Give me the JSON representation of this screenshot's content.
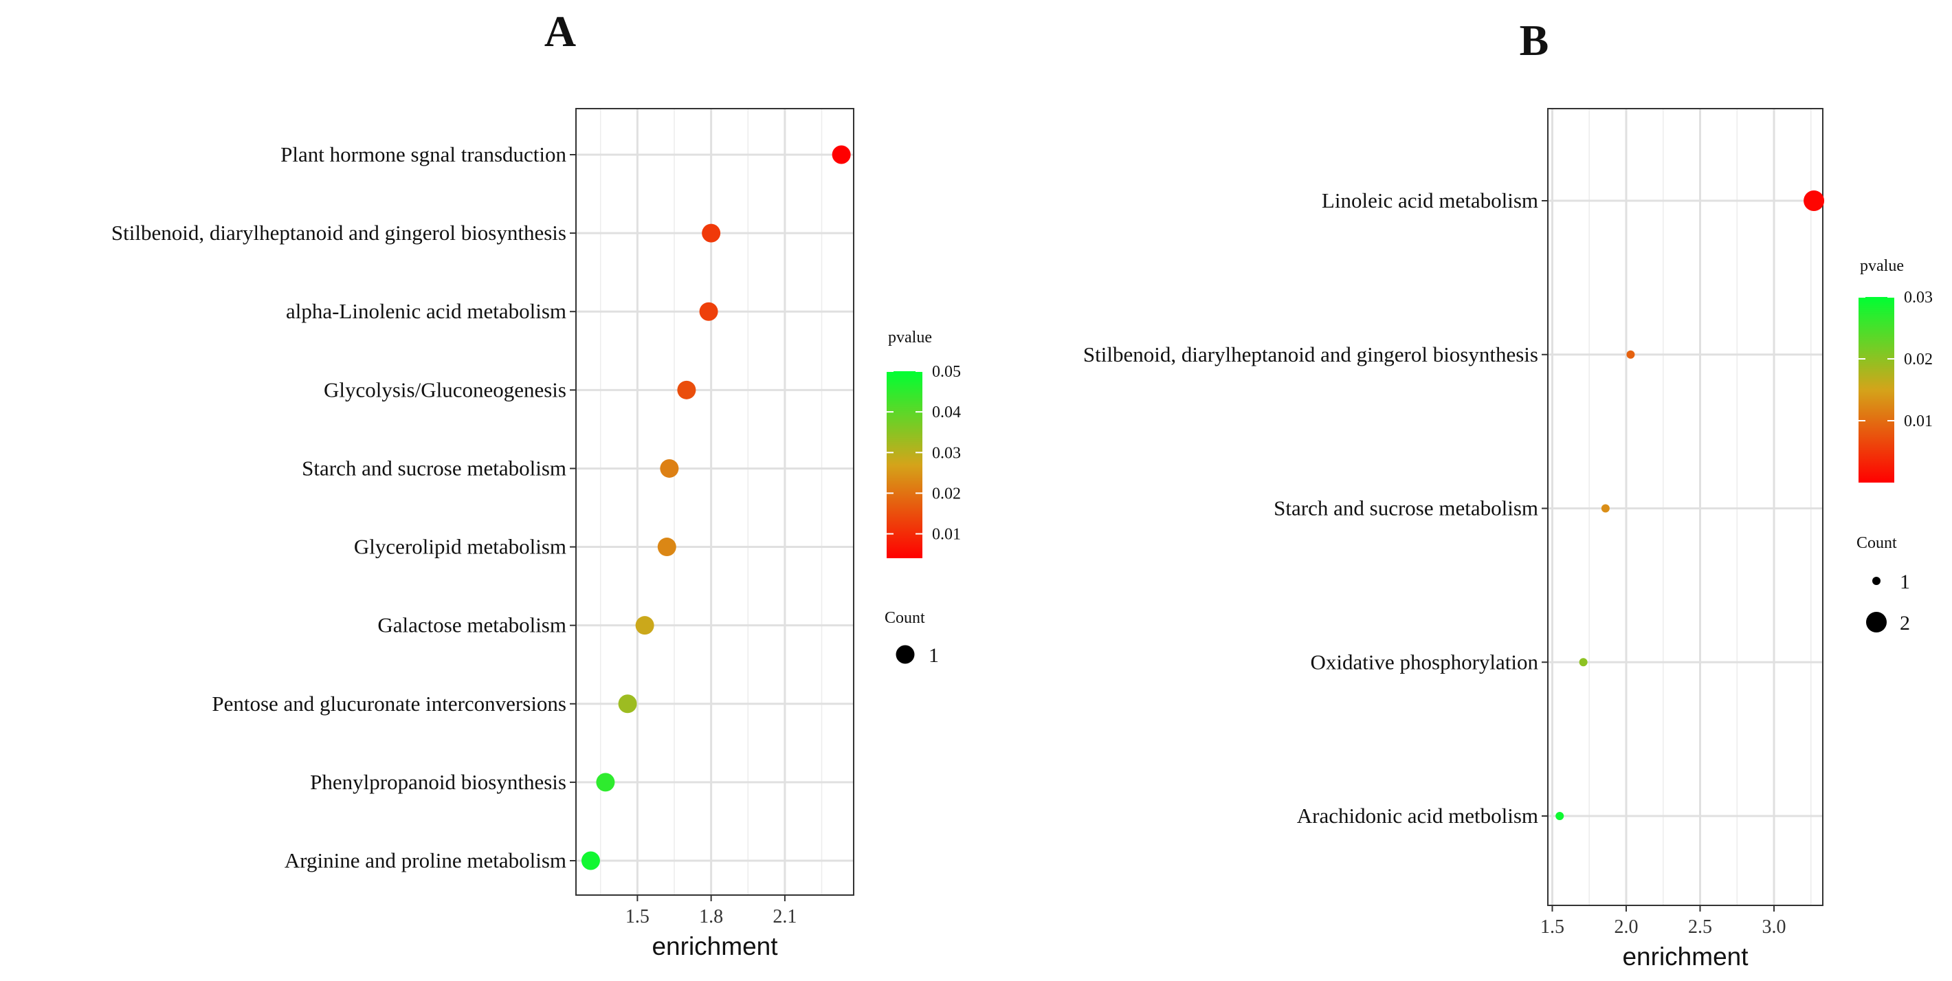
{
  "chart_data": [
    {
      "panel": "A",
      "type": "scatter",
      "xlabel": "enrichment",
      "xlim": [
        1.25,
        2.38
      ],
      "xticks": [
        1.5,
        1.8,
        2.1
      ],
      "xtick_labels": [
        "1.5",
        "1.8",
        "2.1"
      ],
      "categories": [
        "Plant hormone sgnal transduction",
        "Stilbenoid, diarylheptanoid and gingerol biosynthesis",
        "alpha-Linolenic acid metabolism",
        "Glycolysis/Gluconeogenesis",
        "Starch and sucrose metabolism",
        "Glycerolipid metabolism",
        "Galactose metabolism",
        "Pentose and glucuronate interconversions",
        "Phenylpropanoid biosynthesis",
        "Arginine and proline metabolism"
      ],
      "enrichment": [
        2.33,
        1.8,
        1.79,
        1.7,
        1.63,
        1.62,
        1.53,
        1.46,
        1.37,
        1.31
      ],
      "pvalue": [
        0.001,
        0.012,
        0.013,
        0.015,
        0.022,
        0.023,
        0.028,
        0.033,
        0.045,
        0.048
      ],
      "count": [
        1,
        1,
        1,
        1,
        1,
        1,
        1,
        1,
        1,
        1
      ],
      "colorbar": {
        "title": "pvalue",
        "range": [
          0.004,
          0.05
        ],
        "ticks": [
          0.01,
          0.02,
          0.03,
          0.04,
          0.05
        ],
        "tick_labels": [
          "0.01",
          "0.02",
          "0.03",
          "0.04",
          "0.05"
        ],
        "low_color": "#ff0000",
        "high_color": "#00ff33"
      },
      "size_legend": {
        "title": "Count",
        "values": [
          1
        ],
        "labels": [
          "1"
        ]
      }
    },
    {
      "panel": "B",
      "type": "scatter",
      "xlabel": "enrichment",
      "xlim": [
        1.47,
        3.33
      ],
      "xticks": [
        1.5,
        2.0,
        2.5,
        3.0
      ],
      "xtick_labels": [
        "1.5",
        "2.0",
        "2.5",
        "3.0"
      ],
      "categories": [
        "Linoleic acid metabolism",
        "Stilbenoid, diarylheptanoid and gingerol biosynthesis",
        "Starch and sucrose metabolism",
        "Oxidative phosphorylation",
        "Arachidonic acid metbolism"
      ],
      "enrichment": [
        3.27,
        2.03,
        1.86,
        1.71,
        1.55
      ],
      "pvalue": [
        0.0005,
        0.009,
        0.013,
        0.02,
        0.029
      ],
      "count": [
        2,
        1,
        1,
        1,
        1
      ],
      "colorbar": {
        "title": "pvalue",
        "range": [
          0.0,
          0.03
        ],
        "ticks": [
          0.01,
          0.02,
          0.03
        ],
        "tick_labels": [
          "0.01",
          "0.02",
          "0.03"
        ],
        "low_color": "#ff0000",
        "high_color": "#00ff33"
      },
      "size_legend": {
        "title": "Count",
        "values": [
          1,
          2
        ],
        "labels": [
          "1",
          "2"
        ]
      }
    }
  ]
}
